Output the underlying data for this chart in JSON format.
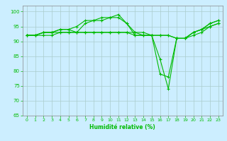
{
  "xlabel": "Humidité relative (%)",
  "background_color": "#cceeff",
  "grid_color": "#aacccc",
  "line_color": "#00bb00",
  "xlim": [
    -0.5,
    23.5
  ],
  "ylim": [
    65,
    102
  ],
  "yticks": [
    65,
    70,
    75,
    80,
    85,
    90,
    95,
    100
  ],
  "xticks": [
    0,
    1,
    2,
    3,
    4,
    5,
    6,
    7,
    8,
    9,
    10,
    11,
    12,
    13,
    14,
    15,
    16,
    17,
    18,
    19,
    20,
    21,
    22,
    23
  ],
  "series": [
    [
      92,
      92,
      93,
      93,
      94,
      94,
      95,
      97,
      97,
      98,
      98,
      99,
      96,
      92,
      92,
      92,
      84,
      74,
      91,
      91,
      93,
      94,
      96,
      97
    ],
    [
      92,
      92,
      93,
      93,
      94,
      94,
      93,
      96,
      97,
      97,
      98,
      98,
      96,
      93,
      92,
      92,
      79,
      78,
      91,
      91,
      93,
      94,
      96,
      97
    ],
    [
      92,
      92,
      93,
      93,
      93,
      93,
      93,
      93,
      93,
      93,
      93,
      93,
      93,
      93,
      93,
      92,
      92,
      92,
      91,
      91,
      93,
      94,
      95,
      96
    ],
    [
      92,
      92,
      92,
      92,
      93,
      93,
      93,
      93,
      93,
      93,
      93,
      93,
      93,
      92,
      92,
      92,
      92,
      92,
      91,
      91,
      92,
      93,
      95,
      96
    ]
  ]
}
